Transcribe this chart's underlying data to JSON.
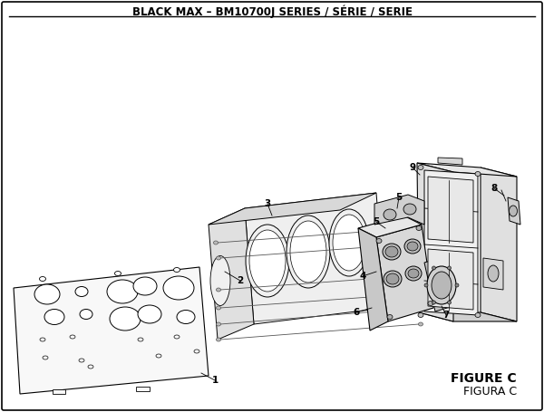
{
  "title": "BLACK MAX – BM10700J SERIES / SÉRIE / SERIE",
  "figure_label": "FIGURE C",
  "figura_label": "FIGURA C",
  "bg": "#ffffff",
  "fg": "#000000",
  "fill_light": "#f5f5f5",
  "fill_mid": "#e8e8e8",
  "fill_dark": "#d0d0d0"
}
